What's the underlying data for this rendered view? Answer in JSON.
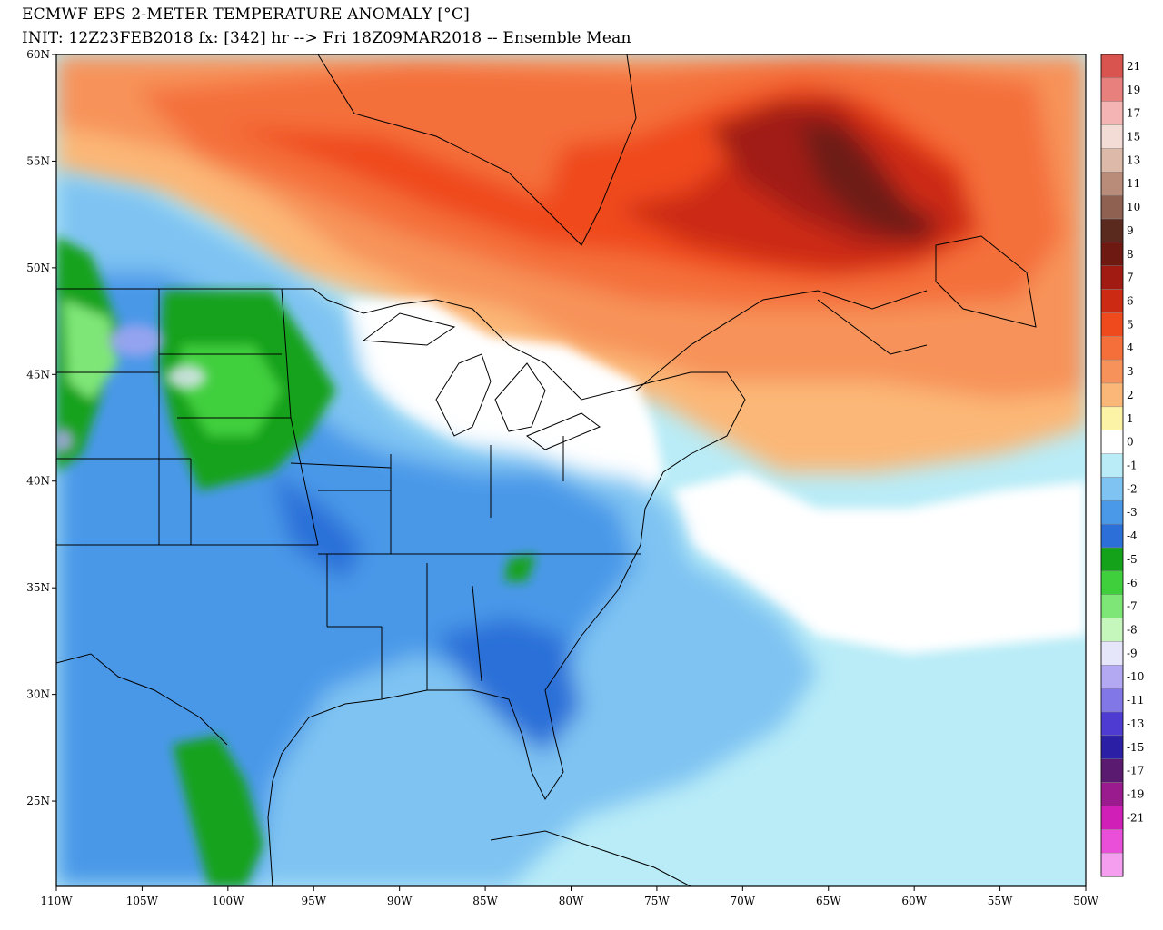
{
  "header": {
    "title": "ECMWF EPS 2-METER TEMPERATURE ANOMALY [°C]",
    "subtitle": "INIT: 12Z23FEB2018 fx: [342] hr --> Fri 18Z09MAR2018 -- Ensemble Mean"
  },
  "map": {
    "lon_min": -110,
    "lon_max": -50,
    "lat_min": 21,
    "lat_max": 60,
    "lat_ticks": [
      {
        "value": 60,
        "label": "60N"
      },
      {
        "value": 55,
        "label": "55N"
      },
      {
        "value": 50,
        "label": "50N"
      },
      {
        "value": 45,
        "label": "45N"
      },
      {
        "value": 40,
        "label": "40N"
      },
      {
        "value": 35,
        "label": "35N"
      },
      {
        "value": 30,
        "label": "30N"
      },
      {
        "value": 25,
        "label": "25N"
      }
    ],
    "lon_ticks": [
      {
        "value": -110,
        "label": "110W"
      },
      {
        "value": -105,
        "label": "105W"
      },
      {
        "value": -100,
        "label": "100W"
      },
      {
        "value": -95,
        "label": "95W"
      },
      {
        "value": -90,
        "label": "90W"
      },
      {
        "value": -85,
        "label": "85W"
      },
      {
        "value": -80,
        "label": "80W"
      },
      {
        "value": -75,
        "label": "75W"
      },
      {
        "value": -70,
        "label": "70W"
      },
      {
        "value": -65,
        "label": "65W"
      },
      {
        "value": -60,
        "label": "60W"
      },
      {
        "value": -55,
        "label": "55W"
      },
      {
        "value": -50,
        "label": "50W"
      }
    ]
  },
  "colorbar": {
    "levels": [
      {
        "label": "21",
        "color": "#d9534f"
      },
      {
        "label": "19",
        "color": "#e8807d"
      },
      {
        "label": "17",
        "color": "#f4b4b4"
      },
      {
        "label": "15",
        "color": "#f3dcd6"
      },
      {
        "label": "13",
        "color": "#dcb9a8"
      },
      {
        "label": "11",
        "color": "#b98c79"
      },
      {
        "label": "10",
        "color": "#8e6150"
      },
      {
        "label": "9",
        "color": "#5a2a1f"
      },
      {
        "label": "8",
        "color": "#6e1a12"
      },
      {
        "label": "7",
        "color": "#a11b12"
      },
      {
        "label": "6",
        "color": "#cc2a12"
      },
      {
        "label": "5",
        "color": "#ef4a1e"
      },
      {
        "label": "4",
        "color": "#f46f3a"
      },
      {
        "label": "3",
        "color": "#f7935a"
      },
      {
        "label": "2",
        "color": "#fbb777"
      },
      {
        "label": "1",
        "color": "#fdf3a6"
      },
      {
        "label": "0",
        "color": "#ffffff"
      },
      {
        "label": "-1",
        "color": "#b9ecf7"
      },
      {
        "label": "-2",
        "color": "#7ec3f2"
      },
      {
        "label": "-3",
        "color": "#4a98e8"
      },
      {
        "label": "-4",
        "color": "#2c6fd8"
      },
      {
        "label": "-5",
        "color": "#13a21a"
      },
      {
        "label": "-6",
        "color": "#3fcf3c"
      },
      {
        "label": "-7",
        "color": "#7ee677"
      },
      {
        "label": "-8",
        "color": "#c5f7bd"
      },
      {
        "label": "-9",
        "color": "#e6e6fb"
      },
      {
        "label": "-10",
        "color": "#b3a8f2"
      },
      {
        "label": "-11",
        "color": "#8277e6"
      },
      {
        "label": "-13",
        "color": "#4e3bd1"
      },
      {
        "label": "-15",
        "color": "#2b1fa6"
      },
      {
        "label": "-17",
        "color": "#5a1a70"
      },
      {
        "label": "-19",
        "color": "#9a1b8e"
      },
      {
        "label": "-21",
        "color": "#cf1fb6"
      }
    ],
    "extra_bottom_colors": [
      "#e94fd8",
      "#f59ef0"
    ]
  }
}
